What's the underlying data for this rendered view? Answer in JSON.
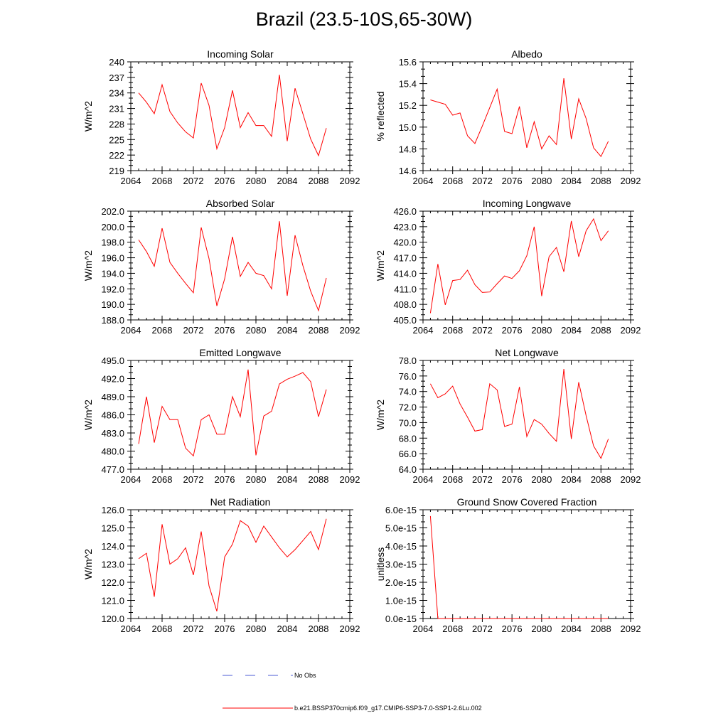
{
  "figure": {
    "title": "Brazil (23.5-10S,65-30W)",
    "legend": [
      {
        "label": "No Obs",
        "color": "#4b5bd6",
        "style": "dashed"
      },
      {
        "label": "b.e21.BSSP370cmip6.f09_g17.CMIP6-SSP3-7.0-SSP1-2.6Lu.002",
        "color": "#ff0000",
        "style": "solid"
      }
    ],
    "line_color": "#ff0000"
  },
  "chart_data": [
    {
      "type": "line",
      "title": "Incoming Solar",
      "ylabel": "W/m^2",
      "xlim": [
        2064,
        2092
      ],
      "ylim": [
        219,
        240
      ],
      "xticks": [
        "2064",
        "2068",
        "2072",
        "2076",
        "2080",
        "2084",
        "2088",
        "2092"
      ],
      "yticks": [
        "219",
        "222",
        "225",
        "228",
        "231",
        "234",
        "237",
        "240"
      ],
      "x": [
        2065,
        2066,
        2067,
        2068,
        2069,
        2070,
        2071,
        2072,
        2073,
        2074,
        2075,
        2076,
        2077,
        2078,
        2079,
        2080,
        2081,
        2082,
        2083,
        2084,
        2085,
        2086,
        2087,
        2088,
        2089
      ],
      "series": [
        {
          "values": [
            234.0,
            232.2,
            230.0,
            235.6,
            230.4,
            228.2,
            226.5,
            225.3,
            235.9,
            231.6,
            223.2,
            227.3,
            234.5,
            227.3,
            230.2,
            227.7,
            227.7,
            225.6,
            237.5,
            224.7,
            234.9,
            230.0,
            225.1,
            221.9,
            227.2
          ]
        }
      ]
    },
    {
      "type": "line",
      "title": "Albedo",
      "ylabel": "% reflected",
      "xlim": [
        2064,
        2092
      ],
      "ylim": [
        14.6,
        15.6
      ],
      "xticks": [
        "2064",
        "2068",
        "2072",
        "2076",
        "2080",
        "2084",
        "2088",
        "2092"
      ],
      "yticks": [
        "14.6",
        "14.8",
        "15.0",
        "15.2",
        "15.4",
        "15.6"
      ],
      "x": [
        2065,
        2066,
        2067,
        2068,
        2069,
        2070,
        2071,
        2072,
        2073,
        2074,
        2075,
        2076,
        2077,
        2078,
        2079,
        2080,
        2081,
        2082,
        2083,
        2084,
        2085,
        2086,
        2087,
        2088,
        2089
      ],
      "series": [
        {
          "values": [
            15.25,
            15.23,
            15.21,
            15.11,
            15.13,
            14.92,
            14.85,
            15.01,
            15.18,
            15.35,
            14.96,
            14.94,
            15.19,
            14.81,
            15.05,
            14.8,
            14.92,
            14.84,
            15.45,
            14.89,
            15.26,
            15.08,
            14.81,
            14.73,
            14.87
          ]
        }
      ]
    },
    {
      "type": "line",
      "title": "Absorbed Solar",
      "ylabel": "W/m^2",
      "xlim": [
        2064,
        2092
      ],
      "ylim": [
        188.0,
        202.0
      ],
      "xticks": [
        "2064",
        "2068",
        "2072",
        "2076",
        "2080",
        "2084",
        "2088",
        "2092"
      ],
      "yticks": [
        "188.0",
        "190.0",
        "192.0",
        "194.0",
        "196.0",
        "198.0",
        "200.0",
        "202.0"
      ],
      "x": [
        2065,
        2066,
        2067,
        2068,
        2069,
        2070,
        2071,
        2072,
        2073,
        2074,
        2075,
        2076,
        2077,
        2078,
        2079,
        2080,
        2081,
        2082,
        2083,
        2084,
        2085,
        2086,
        2087,
        2088,
        2089
      ],
      "series": [
        {
          "values": [
            198.3,
            196.8,
            194.9,
            199.8,
            195.4,
            194.0,
            192.7,
            191.5,
            199.9,
            195.9,
            189.8,
            193.3,
            198.7,
            193.6,
            195.4,
            194.0,
            193.7,
            192.0,
            200.7,
            191.1,
            198.9,
            195.0,
            191.7,
            189.2,
            193.4
          ]
        }
      ]
    },
    {
      "type": "line",
      "title": "Incoming Longwave",
      "ylabel": "W/m^2",
      "xlim": [
        2064,
        2092
      ],
      "ylim": [
        405.0,
        426.0
      ],
      "xticks": [
        "2064",
        "2068",
        "2072",
        "2076",
        "2080",
        "2084",
        "2088",
        "2092"
      ],
      "yticks": [
        "405.0",
        "408.0",
        "411.0",
        "414.0",
        "417.0",
        "420.0",
        "423.0",
        "426.0"
      ],
      "x": [
        2065,
        2066,
        2067,
        2068,
        2069,
        2070,
        2071,
        2072,
        2073,
        2074,
        2075,
        2076,
        2077,
        2078,
        2079,
        2080,
        2081,
        2082,
        2083,
        2084,
        2085,
        2086,
        2087,
        2088,
        2089
      ],
      "series": [
        {
          "values": [
            406.3,
            415.8,
            407.9,
            412.6,
            412.8,
            414.6,
            411.8,
            410.3,
            410.4,
            412.0,
            413.5,
            413.0,
            414.5,
            417.4,
            423.0,
            409.6,
            417.2,
            419.0,
            414.3,
            424.1,
            417.2,
            422.2,
            424.5,
            420.3,
            422.2
          ]
        }
      ]
    },
    {
      "type": "line",
      "title": "Emitted Longwave",
      "ylabel": "W/m^2",
      "xlim": [
        2064,
        2092
      ],
      "ylim": [
        477.0,
        495.0
      ],
      "xticks": [
        "2064",
        "2068",
        "2072",
        "2076",
        "2080",
        "2084",
        "2088",
        "2092"
      ],
      "yticks": [
        "477.0",
        "480.0",
        "483.0",
        "486.0",
        "489.0",
        "492.0",
        "495.0"
      ],
      "x": [
        2065,
        2066,
        2067,
        2068,
        2069,
        2070,
        2071,
        2072,
        2073,
        2074,
        2075,
        2076,
        2077,
        2078,
        2079,
        2080,
        2081,
        2082,
        2083,
        2084,
        2085,
        2086,
        2087,
        2088,
        2089
      ],
      "series": [
        {
          "values": [
            481.2,
            489.0,
            481.4,
            487.4,
            485.2,
            485.2,
            480.5,
            479.2,
            485.2,
            486.0,
            482.8,
            482.8,
            489.0,
            485.7,
            493.5,
            479.3,
            485.8,
            486.6,
            491.1,
            491.9,
            492.4,
            493.0,
            491.5,
            485.7,
            490.2
          ]
        }
      ]
    },
    {
      "type": "line",
      "title": "Net Longwave",
      "ylabel": "W/m^2",
      "xlim": [
        2064,
        2092
      ],
      "ylim": [
        64.0,
        78.0
      ],
      "xticks": [
        "2064",
        "2068",
        "2072",
        "2076",
        "2080",
        "2084",
        "2088",
        "2092"
      ],
      "yticks": [
        "64.0",
        "66.0",
        "68.0",
        "70.0",
        "72.0",
        "74.0",
        "76.0",
        "78.0"
      ],
      "x": [
        2065,
        2066,
        2067,
        2068,
        2069,
        2070,
        2071,
        2072,
        2073,
        2074,
        2075,
        2076,
        2077,
        2078,
        2079,
        2080,
        2081,
        2082,
        2083,
        2084,
        2085,
        2086,
        2087,
        2088,
        2089
      ],
      "series": [
        {
          "values": [
            75.0,
            73.2,
            73.7,
            74.7,
            72.4,
            70.7,
            68.9,
            69.1,
            75.0,
            74.2,
            69.5,
            69.8,
            74.6,
            68.2,
            70.4,
            69.8,
            68.6,
            67.6,
            76.9,
            67.9,
            75.2,
            70.9,
            67.0,
            65.4,
            67.9
          ]
        }
      ]
    },
    {
      "type": "line",
      "title": "Net Radiation",
      "ylabel": "W/m^2",
      "xlim": [
        2064,
        2092
      ],
      "ylim": [
        120.0,
        126.0
      ],
      "xticks": [
        "2064",
        "2068",
        "2072",
        "2076",
        "2080",
        "2084",
        "2088",
        "2092"
      ],
      "yticks": [
        "120.0",
        "121.0",
        "122.0",
        "123.0",
        "124.0",
        "125.0",
        "126.0"
      ],
      "x": [
        2065,
        2066,
        2067,
        2068,
        2069,
        2070,
        2071,
        2072,
        2073,
        2074,
        2075,
        2076,
        2077,
        2078,
        2079,
        2080,
        2081,
        2082,
        2083,
        2084,
        2085,
        2086,
        2087,
        2088,
        2089
      ],
      "series": [
        {
          "values": [
            123.3,
            123.6,
            121.2,
            125.2,
            123.0,
            123.3,
            123.9,
            122.4,
            124.8,
            121.8,
            120.4,
            123.4,
            124.1,
            125.4,
            125.1,
            124.2,
            125.1,
            124.5,
            123.9,
            123.4,
            123.8,
            124.3,
            124.8,
            123.8,
            125.5
          ]
        }
      ]
    },
    {
      "type": "line",
      "title": "Ground Snow Covered Fraction",
      "ylabel": "unitless",
      "xlim": [
        2064,
        2092
      ],
      "ylim": [
        0,
        6e-15
      ],
      "xticks": [
        "2064",
        "2068",
        "2072",
        "2076",
        "2080",
        "2084",
        "2088",
        "2092"
      ],
      "yticks": [
        "0.0e-15",
        "1.0e-15",
        "2.0e-15",
        "3.0e-15",
        "4.0e-15",
        "5.0e-15",
        "6.0e-15"
      ],
      "x": [
        2065,
        2066,
        2067,
        2068,
        2069,
        2070,
        2071,
        2072,
        2073,
        2074,
        2075,
        2076,
        2077,
        2078,
        2079,
        2080,
        2081,
        2082,
        2083,
        2084,
        2085,
        2086,
        2087,
        2088,
        2089
      ],
      "series": [
        {
          "values": [
            5.65e-15,
            0,
            0,
            0,
            0,
            0,
            0,
            0,
            0,
            0,
            0,
            0,
            0,
            0,
            0,
            0,
            0,
            0,
            0,
            0,
            0,
            0,
            0,
            0,
            0
          ]
        }
      ]
    }
  ]
}
